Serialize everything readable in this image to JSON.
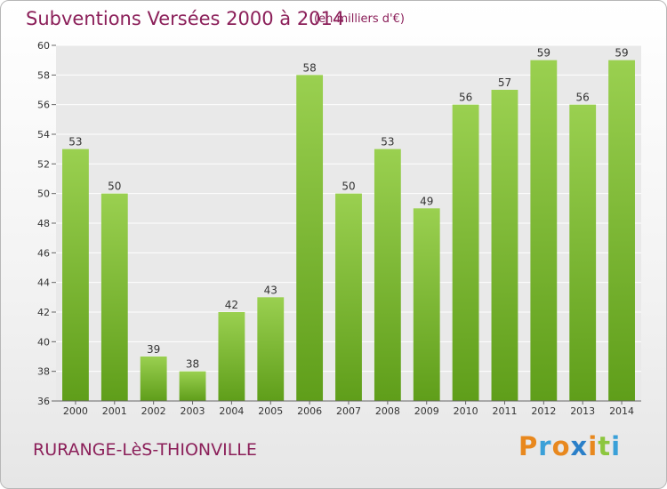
{
  "header": {
    "title": "Subventions Versées 2000 à 2014",
    "subtitle": "(en milliers d'€)"
  },
  "footer": {
    "place": "RURANGE-LèS-THIONVILLE",
    "brand_letters": [
      "P",
      "r",
      "o",
      "x",
      "i",
      "t",
      "i"
    ],
    "brand_colors": [
      "#e8881e",
      "#3aa0d8",
      "#e8881e",
      "#2a7fc8",
      "#e8881e",
      "#8cc63e",
      "#3aa0d8"
    ]
  },
  "colors": {
    "bar_top": "#9ad050",
    "bar_bottom": "#5f9e1a",
    "grid": "#ffffff",
    "axis_text": "#333333",
    "title": "#8b1f59"
  },
  "chart_data": {
    "type": "bar",
    "title": "Subventions Versées 2000 à 2014",
    "subtitle": "(en milliers d'€)",
    "xlabel": "",
    "ylabel": "",
    "categories": [
      "2000",
      "2001",
      "2002",
      "2003",
      "2004",
      "2005",
      "2006",
      "2007",
      "2008",
      "2009",
      "2010",
      "2011",
      "2012",
      "2013",
      "2014"
    ],
    "values": [
      53,
      50,
      39,
      38,
      42,
      43,
      58,
      50,
      53,
      49,
      56,
      57,
      59,
      56,
      59
    ],
    "ylim": [
      36,
      60
    ],
    "yticks": [
      36,
      38,
      40,
      42,
      44,
      46,
      48,
      50,
      52,
      54,
      56,
      58,
      60
    ],
    "grid": true,
    "data_labels": true
  }
}
